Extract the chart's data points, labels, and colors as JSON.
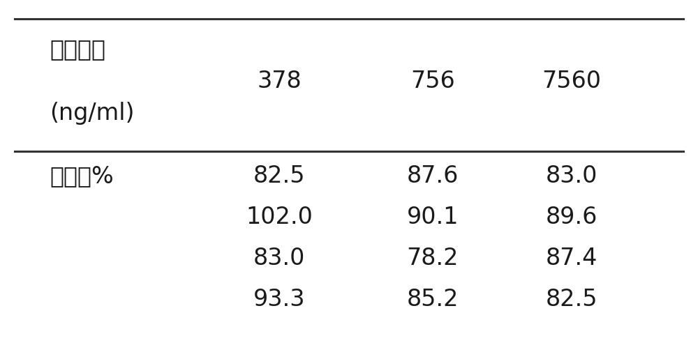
{
  "col_header": [
    "378",
    "756",
    "7560"
  ],
  "row_label_line1": "加入浓度",
  "row_label_line2": "(ng/ml)",
  "row2_label": "回收率%",
  "data_rows": [
    [
      "82.5",
      "87.6",
      "83.0"
    ],
    [
      "102.0",
      "90.1",
      "89.6"
    ],
    [
      "83.0",
      "78.2",
      "87.4"
    ],
    [
      "93.3",
      "85.2",
      "82.5"
    ]
  ],
  "bg_color": "#ffffff",
  "text_color": "#1a1a1a",
  "line_color": "#333333",
  "font_size": 24,
  "label_font_size": 24
}
